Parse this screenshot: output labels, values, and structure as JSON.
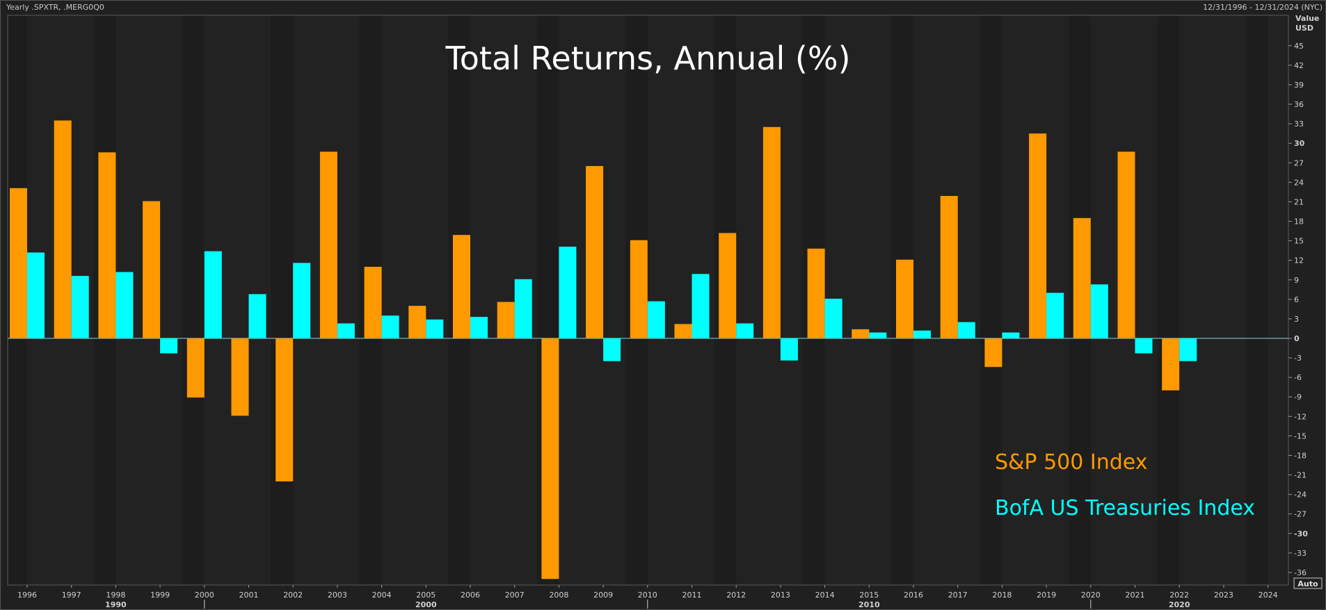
{
  "header": {
    "instrument": "Yearly .SPXTR, .MERG0Q0",
    "range": "12/31/1996 - 12/31/2024 (NYC)"
  },
  "chart_data": {
    "type": "bar",
    "title": "Total Returns, Annual (%)",
    "ylabel": "Value",
    "yunit": "USD",
    "ylim": [
      -37,
      47
    ],
    "yticks": [
      45,
      42,
      39,
      36,
      33,
      30,
      27,
      24,
      21,
      18,
      15,
      12,
      9,
      6,
      3,
      0,
      -3,
      -6,
      -9,
      -12,
      -15,
      -18,
      -21,
      -24,
      -27,
      -30,
      -33,
      -36
    ],
    "scale_mode": "Auto",
    "categories": [
      "1996",
      "1997",
      "1998",
      "1999",
      "2000",
      "2001",
      "2002",
      "2003",
      "2004",
      "2005",
      "2006",
      "2007",
      "2008",
      "2009",
      "2010",
      "2011",
      "2012",
      "2013",
      "2014",
      "2015",
      "2016",
      "2017",
      "2018",
      "2019",
      "2020",
      "2021",
      "2022",
      "2023",
      "2024"
    ],
    "decade_labels": [
      {
        "label": "1990",
        "year": 1998
      },
      {
        "label": "2000",
        "year": 2005
      },
      {
        "label": "2010",
        "year": 2015
      },
      {
        "label": "2020",
        "year": 2022
      }
    ],
    "decade_markers": [
      2000,
      2010,
      2020
    ],
    "legend_placement": "bottom-right",
    "series": [
      {
        "name": "S&P 500 Index",
        "color": "#ff9900",
        "values": [
          23.1,
          33.5,
          28.6,
          21.1,
          -9.1,
          -11.9,
          -22.0,
          28.7,
          11.0,
          5.0,
          15.9,
          5.6,
          -37.0,
          26.5,
          15.1,
          2.2,
          16.2,
          32.5,
          13.8,
          1.4,
          12.1,
          21.9,
          -4.4,
          31.5,
          18.5,
          28.7,
          -8.0,
          null,
          null
        ]
      },
      {
        "name": "BofA US Treasuries Index",
        "color": "#00ffff",
        "values": [
          13.2,
          9.6,
          10.2,
          -2.3,
          13.4,
          6.8,
          11.6,
          2.3,
          3.5,
          2.9,
          3.3,
          9.1,
          14.1,
          -3.5,
          5.7,
          9.9,
          2.3,
          -3.4,
          6.1,
          0.9,
          1.2,
          2.5,
          0.9,
          7.0,
          8.3,
          -2.3,
          -3.5,
          null,
          null
        ]
      }
    ]
  }
}
